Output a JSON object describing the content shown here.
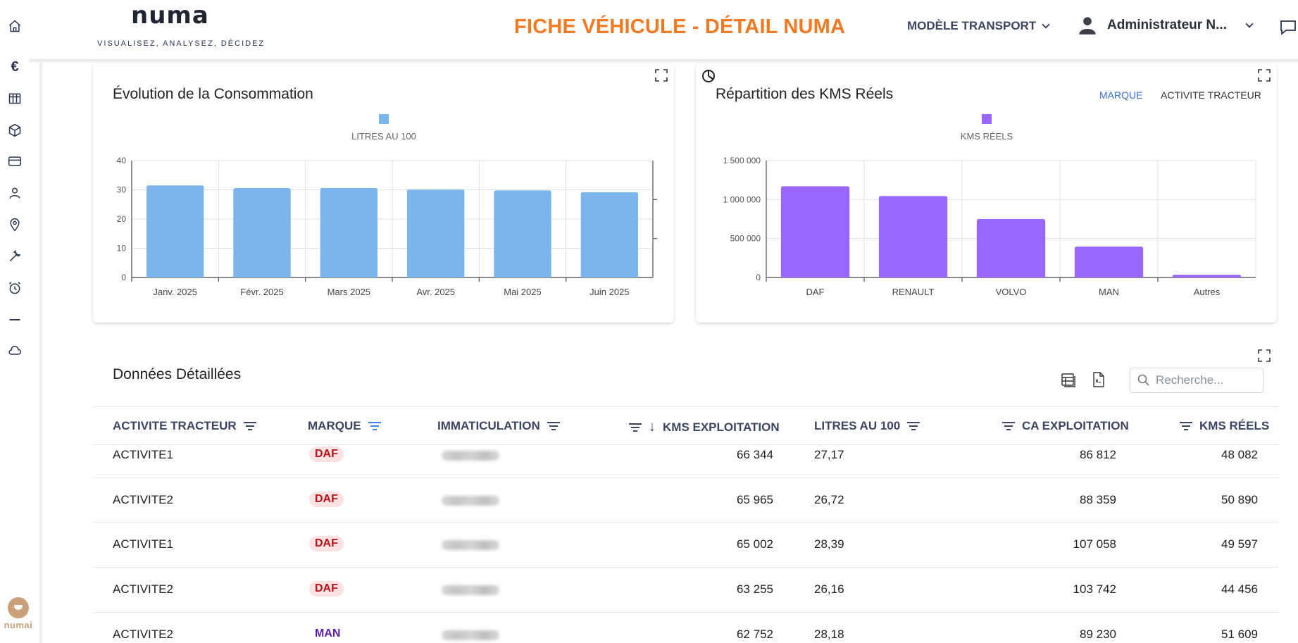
{
  "header": {
    "logo_text": "numa",
    "logo_tagline": "VISUALISEZ, ANALYSEZ, DÉCIDEZ",
    "page_title": "FICHE VÉHICULE - DÉTAIL NUMA",
    "model_select": "MODÈLE TRANSPORT",
    "user_name": "Administrateur N..."
  },
  "sidebar": {
    "items": [
      "home-icon",
      "euro-icon",
      "table-icon",
      "cube-icon",
      "card-icon",
      "user-icon",
      "location-icon",
      "wrench-icon",
      "alarm-icon",
      "minus-icon",
      "cloud-icon"
    ],
    "euro_symbol": "€",
    "bottom_logo_text": "numai"
  },
  "consumption_card": {
    "title": "Évolution de la Consommation",
    "legend": "LITRES AU 100",
    "color": "#7cb5ec"
  },
  "kms_card": {
    "title": "Répartition des KMS Réels",
    "legend": "KMS RÉELS",
    "color": "#9966ff",
    "toggle_marque": "MARQUE",
    "toggle_activite": "ACTIVITE TRACTEUR"
  },
  "chart_data": [
    {
      "type": "bar",
      "categories": [
        "Janv. 2025",
        "Févr. 2025",
        "Mars 2025",
        "Avr. 2025",
        "Mai 2025",
        "Juin 2025"
      ],
      "series": [
        {
          "name": "LITRES AU 100",
          "values": [
            31.5,
            30.6,
            30.6,
            30.1,
            29.8,
            29.2
          ]
        }
      ],
      "title": "Évolution de la Consommation",
      "ylim": [
        0,
        40
      ],
      "yticks": [
        "0",
        "10",
        "20",
        "30",
        "40"
      ],
      "grid": true,
      "legend": "top-center"
    },
    {
      "type": "bar",
      "categories": [
        "DAF",
        "RENAULT",
        "VOLVO",
        "MAN",
        "Autres"
      ],
      "series": [
        {
          "name": "KMS RÉELS",
          "values": [
            1170000,
            1045000,
            750000,
            395000,
            35000
          ]
        }
      ],
      "title": "Répartition des KMS Réels",
      "ylim": [
        0,
        1500000
      ],
      "yticks": [
        "0",
        "500 000",
        "1 000 000",
        "1 500 000"
      ],
      "grid": true,
      "legend": "top-center"
    }
  ],
  "table": {
    "title": "Données Détaillées",
    "search_placeholder": "Recherche...",
    "columns": {
      "activite": "ACTIVITE TRACTEUR",
      "marque": "MARQUE",
      "immat": "IMMATICULATION",
      "kms_exploitation": "KMS EXPLOITATION",
      "litres": "LITRES AU 100",
      "ca": "CA EXPLOITATION",
      "kms_reels": "KMS RÉELS"
    },
    "sort_arrow": "↓",
    "rows": [
      {
        "activite": "ACTIVITE1",
        "marque": "DAF",
        "kms_exploitation": "66 344",
        "litres": "27,17",
        "ca": "86 812",
        "kms_reels": "48 082"
      },
      {
        "activite": "ACTIVITE2",
        "marque": "DAF",
        "kms_exploitation": "65 965",
        "litres": "26,72",
        "ca": "88 359",
        "kms_reels": "50 890"
      },
      {
        "activite": "ACTIVITE1",
        "marque": "DAF",
        "kms_exploitation": "65 002",
        "litres": "28,39",
        "ca": "107 058",
        "kms_reels": "49 597"
      },
      {
        "activite": "ACTIVITE2",
        "marque": "DAF",
        "kms_exploitation": "63 255",
        "litres": "26,16",
        "ca": "103 742",
        "kms_reels": "44 456"
      },
      {
        "activite": "ACTIVITE2",
        "marque": "MAN",
        "kms_exploitation": "62 752",
        "litres": "28,18",
        "ca": "89 230",
        "kms_reels": "51 609"
      }
    ]
  }
}
